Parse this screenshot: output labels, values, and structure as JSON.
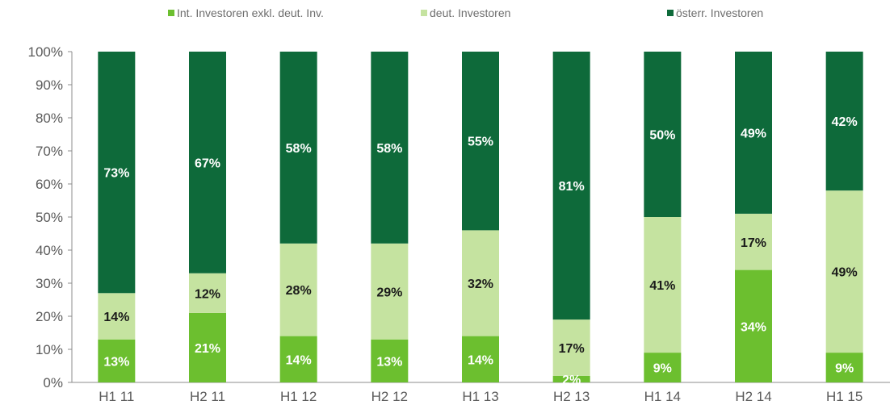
{
  "colors": {
    "int_investoren": "#6CBF2F",
    "deut_investoren": "#C5E3A0",
    "oesterr_investoren": "#0E6A3A",
    "axis": "#8c8c8c"
  },
  "legend": [
    {
      "label": "Int. Investoren exkl. deut. Inv.",
      "color_key": "int_investoren"
    },
    {
      "label": "deut. Investoren",
      "color_key": "deut_investoren"
    },
    {
      "label": "österr. Investoren",
      "color_key": "oesterr_investoren"
    }
  ],
  "chart_data": {
    "type": "bar",
    "stacked": true,
    "categories": [
      "H1 11",
      "H2 11",
      "H1 12",
      "H2 12",
      "H1 13",
      "H2 13",
      "H1 14",
      "H2 14",
      "H1 15"
    ],
    "ylim": [
      0,
      100
    ],
    "yticks": [
      "0%",
      "10%",
      "20%",
      "30%",
      "40%",
      "50%",
      "60%",
      "70%",
      "80%",
      "90%",
      "100%"
    ],
    "legend_position": "top",
    "grid": false,
    "series": [
      {
        "name": "Int. Investoren exkl. deut. Inv.",
        "color_key": "int_investoren",
        "values": [
          13,
          21,
          14,
          13,
          14,
          2,
          9,
          34,
          9
        ],
        "labels": [
          "13%",
          "21%",
          "14%",
          "13%",
          "14%",
          "2%",
          "9%",
          "34%",
          "9%"
        ],
        "label_color": [
          "light",
          "light",
          "light",
          "light",
          "light",
          "light",
          "light",
          "light",
          "light"
        ]
      },
      {
        "name": "deut. Investoren",
        "color_key": "deut_investoren",
        "values": [
          14,
          12,
          28,
          29,
          32,
          17,
          41,
          17,
          49
        ],
        "labels": [
          "14%",
          "12%",
          "28%",
          "29%",
          "32%",
          "17%",
          "41%",
          "17%",
          "49%"
        ],
        "label_color": [
          "dark",
          "dark",
          "dark",
          "dark",
          "dark",
          "dark",
          "dark",
          "dark",
          "dark"
        ]
      },
      {
        "name": "österr. Investoren",
        "color_key": "oesterr_investoren",
        "values": [
          73,
          67,
          58,
          58,
          55,
          81,
          50,
          49,
          42
        ],
        "labels": [
          "73%",
          "67%",
          "58%",
          "58%",
          "55%",
          "81%",
          "50%",
          "49%",
          "42%"
        ],
        "label_color": [
          "light",
          "light",
          "light",
          "light",
          "light",
          "light",
          "light",
          "light",
          "light"
        ]
      }
    ]
  }
}
